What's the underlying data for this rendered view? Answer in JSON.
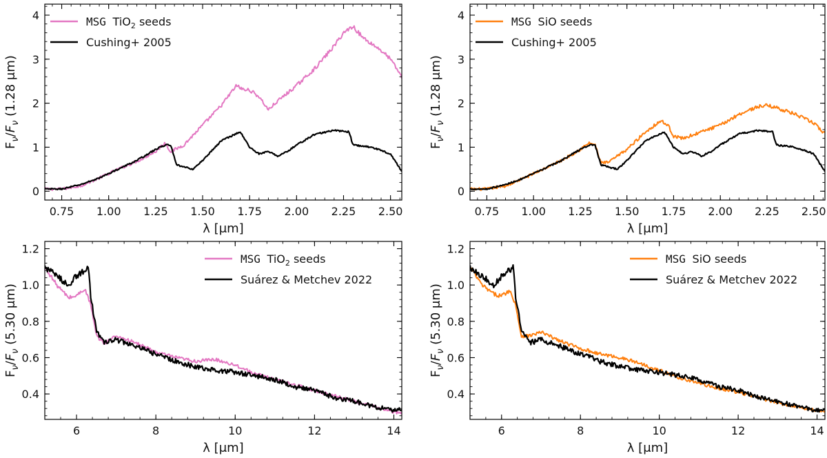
{
  "chart_data": [
    {
      "type": "line",
      "id": "tl",
      "xlabel": "λ [μm]",
      "ylabel": "F_ν/F_ν (1.28 μm)",
      "xlim": [
        0.66,
        2.56
      ],
      "ylim": [
        -0.2,
        4.25
      ],
      "xticks": [
        0.75,
        1.0,
        1.25,
        1.5,
        1.75,
        2.0,
        2.25,
        2.5
      ],
      "xtick_labels": [
        "0.75",
        "1.00",
        "1.25",
        "1.50",
        "1.75",
        "2.00",
        "2.25",
        "2.50"
      ],
      "yticks": [
        0,
        1,
        2,
        3,
        4
      ],
      "ytick_labels": [
        "0",
        "1",
        "2",
        "3",
        "4"
      ],
      "legend_position": "top-left",
      "series": [
        {
          "name": "MSG TiO2 seeds",
          "legend_code": "MSG",
          "legend_text": "TiO",
          "legend_sub": "2",
          "legend_tail": " seeds",
          "color": "#e377c2",
          "noise": 0.05,
          "x": [
            0.66,
            0.75,
            0.85,
            0.95,
            1.05,
            1.15,
            1.25,
            1.3,
            1.33,
            1.4,
            1.5,
            1.6,
            1.68,
            1.72,
            1.75,
            1.8,
            1.85,
            1.9,
            2.0,
            2.1,
            2.2,
            2.25,
            2.3,
            2.35,
            2.45,
            2.5,
            2.56
          ],
          "y": [
            0.05,
            0.05,
            0.12,
            0.3,
            0.5,
            0.68,
            0.9,
            1.1,
            0.9,
            1.05,
            1.5,
            1.95,
            2.4,
            2.3,
            2.3,
            2.15,
            1.85,
            2.05,
            2.4,
            2.8,
            3.3,
            3.6,
            3.75,
            3.5,
            3.2,
            3.0,
            2.6
          ]
        },
        {
          "name": "Cushing+ 2005",
          "color": "#000000",
          "noise": 0.025,
          "x": [
            0.66,
            0.75,
            0.85,
            0.95,
            1.05,
            1.15,
            1.25,
            1.3,
            1.33,
            1.36,
            1.4,
            1.45,
            1.5,
            1.6,
            1.7,
            1.75,
            1.8,
            1.85,
            1.9,
            1.95,
            2.0,
            2.1,
            2.2,
            2.28,
            2.3,
            2.4,
            2.5,
            2.56
          ],
          "y": [
            0.05,
            0.05,
            0.15,
            0.3,
            0.5,
            0.7,
            0.95,
            1.05,
            1.05,
            0.6,
            0.55,
            0.5,
            0.7,
            1.15,
            1.35,
            1.0,
            0.85,
            0.9,
            0.8,
            0.9,
            1.05,
            1.3,
            1.38,
            1.35,
            1.05,
            1.0,
            0.85,
            0.45
          ]
        }
      ]
    },
    {
      "type": "line",
      "id": "tr",
      "xlabel": "λ [μm]",
      "ylabel": "F_ν/F_ν (1.28 μm)",
      "xlim": [
        0.66,
        2.56
      ],
      "ylim": [
        -0.2,
        4.25
      ],
      "xticks": [
        0.75,
        1.0,
        1.25,
        1.5,
        1.75,
        2.0,
        2.25,
        2.5
      ],
      "xtick_labels": [
        "0.75",
        "1.00",
        "1.25",
        "1.50",
        "1.75",
        "2.00",
        "2.25",
        "2.50"
      ],
      "yticks": [
        0,
        1,
        2,
        3,
        4
      ],
      "ytick_labels": [
        "0",
        "1",
        "2",
        "3",
        "4"
      ],
      "legend_position": "top-left",
      "series": [
        {
          "name": "MSG SiO seeds",
          "legend_code": "MSG",
          "legend_text": "SiO seeds",
          "legend_sub": "",
          "legend_tail": "",
          "color": "#ff7f0e",
          "noise": 0.05,
          "x": [
            0.66,
            0.75,
            0.85,
            0.95,
            1.05,
            1.15,
            1.25,
            1.3,
            1.33,
            1.36,
            1.4,
            1.5,
            1.6,
            1.68,
            1.72,
            1.75,
            1.8,
            1.9,
            2.0,
            2.1,
            2.2,
            2.25,
            2.3,
            2.4,
            2.5,
            2.56
          ],
          "y": [
            0.05,
            0.05,
            0.12,
            0.3,
            0.5,
            0.7,
            0.95,
            1.1,
            1.05,
            0.65,
            0.65,
            0.95,
            1.35,
            1.6,
            1.5,
            1.25,
            1.2,
            1.35,
            1.5,
            1.75,
            1.92,
            1.95,
            1.9,
            1.75,
            1.55,
            1.3
          ]
        },
        {
          "name": "Cushing+ 2005",
          "color": "#000000",
          "noise": 0.025,
          "x": [
            0.66,
            0.75,
            0.85,
            0.95,
            1.05,
            1.15,
            1.25,
            1.3,
            1.33,
            1.36,
            1.4,
            1.45,
            1.5,
            1.6,
            1.7,
            1.75,
            1.8,
            1.85,
            1.9,
            1.95,
            2.0,
            2.1,
            2.2,
            2.28,
            2.3,
            2.4,
            2.5,
            2.56
          ],
          "y": [
            0.05,
            0.05,
            0.15,
            0.3,
            0.5,
            0.7,
            0.95,
            1.05,
            1.05,
            0.6,
            0.55,
            0.5,
            0.7,
            1.15,
            1.35,
            1.0,
            0.85,
            0.9,
            0.8,
            0.9,
            1.05,
            1.3,
            1.38,
            1.35,
            1.05,
            1.0,
            0.85,
            0.45
          ]
        }
      ]
    },
    {
      "type": "line",
      "id": "bl",
      "xlabel": "λ [μm]",
      "ylabel": "F_ν/F_ν (5.30 μm)",
      "xlim": [
        5.2,
        14.2
      ],
      "ylim": [
        0.26,
        1.24
      ],
      "xticks": [
        6,
        8,
        10,
        12,
        14
      ],
      "xtick_labels": [
        "6",
        "8",
        "10",
        "12",
        "14"
      ],
      "yticks": [
        0.4,
        0.6,
        0.8,
        1.0,
        1.2
      ],
      "ytick_labels": [
        "0.4",
        "0.6",
        "0.8",
        "1.0",
        "1.2"
      ],
      "legend_position": "top-right",
      "series": [
        {
          "name": "MSG TiO2 seeds",
          "legend_code": "MSG",
          "legend_text": "TiO",
          "legend_sub": "2",
          "legend_tail": " seeds",
          "color": "#e377c2",
          "noise": 0.012,
          "x": [
            5.2,
            5.5,
            5.8,
            6.0,
            6.2,
            6.35,
            6.5,
            6.7,
            7.0,
            7.5,
            8.0,
            8.5,
            9.0,
            9.5,
            10.0,
            10.5,
            11.0,
            11.5,
            12.0,
            12.5,
            13.0,
            13.5,
            14.0,
            14.2
          ],
          "y": [
            1.1,
            1.0,
            0.93,
            0.94,
            0.98,
            0.9,
            0.72,
            0.68,
            0.72,
            0.68,
            0.63,
            0.6,
            0.58,
            0.59,
            0.56,
            0.51,
            0.48,
            0.45,
            0.42,
            0.39,
            0.36,
            0.33,
            0.3,
            0.295
          ]
        },
        {
          "name": "Suárez & Metchev 2022",
          "color": "#000000",
          "noise": 0.018,
          "x": [
            5.2,
            5.5,
            5.8,
            6.0,
            6.2,
            6.3,
            6.35,
            6.5,
            6.7,
            7.0,
            7.5,
            8.0,
            8.5,
            9.0,
            9.5,
            10.0,
            10.5,
            11.0,
            11.5,
            12.0,
            12.5,
            13.0,
            13.5,
            14.0,
            14.2
          ],
          "y": [
            1.1,
            1.05,
            1.0,
            1.05,
            1.08,
            1.1,
            0.95,
            0.75,
            0.68,
            0.7,
            0.66,
            0.62,
            0.58,
            0.55,
            0.53,
            0.52,
            0.5,
            0.48,
            0.44,
            0.42,
            0.38,
            0.36,
            0.33,
            0.31,
            0.32
          ]
        }
      ]
    },
    {
      "type": "line",
      "id": "br",
      "xlabel": "λ [μm]",
      "ylabel": "F_ν/F_ν (5.30 μm)",
      "xlim": [
        5.2,
        14.2
      ],
      "ylim": [
        0.26,
        1.24
      ],
      "xticks": [
        6,
        8,
        10,
        12,
        14
      ],
      "xtick_labels": [
        "6",
        "8",
        "10",
        "12",
        "14"
      ],
      "yticks": [
        0.4,
        0.6,
        0.8,
        1.0,
        1.2
      ],
      "ytick_labels": [
        "0.4",
        "0.6",
        "0.8",
        "1.0",
        "1.2"
      ],
      "legend_position": "top-right",
      "series": [
        {
          "name": "MSG SiO seeds",
          "legend_code": "MSG",
          "legend_text": "SiO seeds",
          "legend_sub": "",
          "legend_tail": "",
          "color": "#ff7f0e",
          "noise": 0.012,
          "x": [
            5.2,
            5.5,
            5.8,
            6.0,
            6.2,
            6.35,
            6.5,
            6.7,
            7.0,
            7.5,
            8.0,
            8.5,
            9.0,
            9.5,
            10.0,
            10.5,
            11.0,
            11.5,
            12.0,
            12.5,
            13.0,
            13.5,
            14.0,
            14.2
          ],
          "y": [
            1.1,
            1.0,
            0.95,
            0.94,
            0.97,
            0.9,
            0.72,
            0.72,
            0.74,
            0.69,
            0.65,
            0.62,
            0.6,
            0.57,
            0.53,
            0.49,
            0.46,
            0.43,
            0.41,
            0.38,
            0.35,
            0.33,
            0.31,
            0.3
          ]
        },
        {
          "name": "Suárez & Metchev 2022",
          "color": "#000000",
          "noise": 0.018,
          "x": [
            5.2,
            5.5,
            5.8,
            6.0,
            6.2,
            6.3,
            6.35,
            6.5,
            6.7,
            7.0,
            7.5,
            8.0,
            8.5,
            9.0,
            9.5,
            10.0,
            10.5,
            11.0,
            11.5,
            12.0,
            12.5,
            13.0,
            13.5,
            14.0,
            14.2
          ],
          "y": [
            1.1,
            1.05,
            1.0,
            1.05,
            1.08,
            1.1,
            0.95,
            0.75,
            0.68,
            0.7,
            0.66,
            0.62,
            0.58,
            0.55,
            0.53,
            0.52,
            0.5,
            0.48,
            0.44,
            0.42,
            0.38,
            0.36,
            0.33,
            0.31,
            0.32
          ]
        }
      ]
    }
  ]
}
